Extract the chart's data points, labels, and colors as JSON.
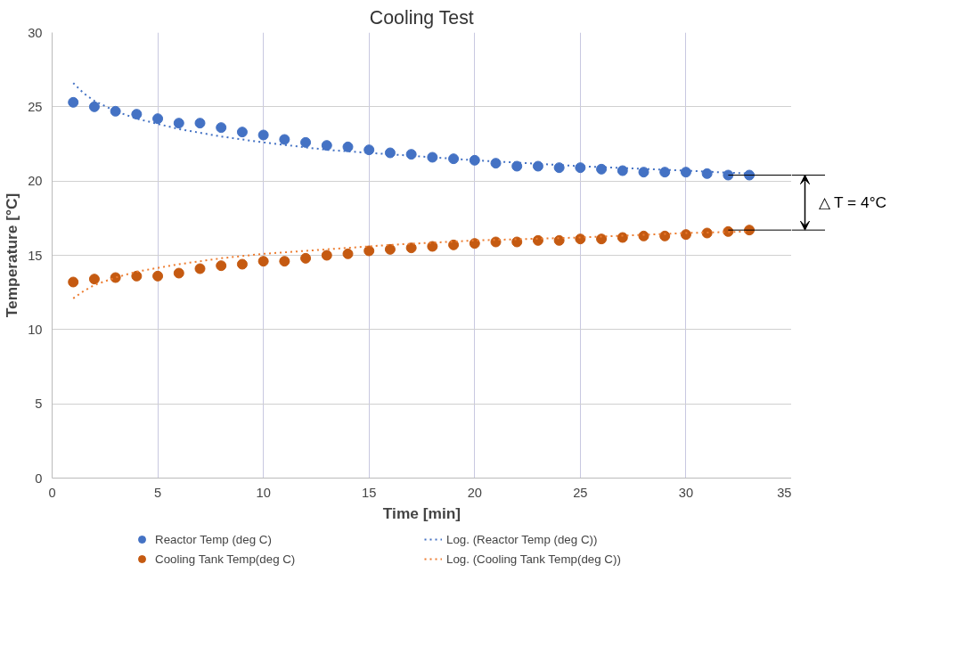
{
  "chart_data": {
    "type": "scatter",
    "title": "Cooling Test",
    "xlabel": "Time [min]",
    "ylabel": "Temperature [°C]",
    "x": [
      1,
      2,
      3,
      4,
      5,
      6,
      7,
      8,
      9,
      10,
      11,
      12,
      13,
      14,
      15,
      16,
      17,
      18,
      19,
      20,
      21,
      22,
      23,
      24,
      25,
      26,
      27,
      28,
      29,
      30,
      31,
      32,
      33
    ],
    "series": [
      {
        "name": "Reactor Temp (deg C)",
        "color": "#4472c4",
        "marker": "circle",
        "values": [
          25.3,
          25.0,
          24.7,
          24.5,
          24.2,
          23.9,
          23.9,
          23.6,
          23.3,
          23.1,
          22.8,
          22.6,
          22.4,
          22.3,
          22.1,
          21.9,
          21.8,
          21.6,
          21.5,
          21.4,
          21.2,
          21.0,
          21.0,
          20.9,
          20.9,
          20.8,
          20.7,
          20.6,
          20.6,
          20.6,
          20.5,
          20.4,
          20.4
        ]
      },
      {
        "name": "Cooling Tank Temp(deg C)",
        "color": "#c55a11",
        "marker": "circle",
        "values": [
          13.2,
          13.4,
          13.5,
          13.6,
          13.6,
          13.8,
          14.1,
          14.3,
          14.4,
          14.6,
          14.6,
          14.8,
          15.0,
          15.1,
          15.3,
          15.4,
          15.5,
          15.6,
          15.7,
          15.8,
          15.9,
          15.9,
          16.0,
          16.0,
          16.1,
          16.1,
          16.2,
          16.3,
          16.3,
          16.4,
          16.5,
          16.6,
          16.7
        ]
      },
      {
        "name": "Log. (Reactor Temp (deg C))",
        "type": "line",
        "line_style": "dotted",
        "marker": "none",
        "color": "#4472c4",
        "x": [
          1,
          1.5,
          2,
          3,
          4,
          6,
          8,
          10,
          13,
          16,
          20,
          25,
          30,
          33
        ],
        "values": [
          26.6,
          25.9,
          25.4,
          24.7,
          24.2,
          23.5,
          23.0,
          22.6,
          22.1,
          21.8,
          21.4,
          21.0,
          20.7,
          20.5
        ]
      },
      {
        "name": "Log. (Cooling Tank Temp(deg C))",
        "type": "line",
        "line_style": "dotted",
        "marker": "none",
        "color": "#ed7d31",
        "x": [
          1,
          1.5,
          2,
          3,
          4,
          6,
          8,
          10,
          13,
          16,
          20,
          25,
          30,
          33
        ],
        "values": [
          12.1,
          12.6,
          13.0,
          13.5,
          13.9,
          14.4,
          14.8,
          15.1,
          15.4,
          15.7,
          16.0,
          16.2,
          16.5,
          16.6
        ]
      }
    ],
    "ref_lines": [
      {
        "axis": "y",
        "value": 20.4,
        "color": "#000000"
      },
      {
        "axis": "y",
        "value": 16.7,
        "color": "#000000"
      }
    ],
    "annotations": [
      "△ T = 4°C"
    ],
    "xlim": [
      0,
      35
    ],
    "xticks": [
      0,
      5,
      10,
      15,
      20,
      25,
      30,
      35
    ],
    "ylim": [
      0,
      30
    ],
    "yticks": [
      0,
      5,
      10,
      15,
      20,
      25,
      30
    ],
    "grid": true,
    "legend": "bottom"
  }
}
